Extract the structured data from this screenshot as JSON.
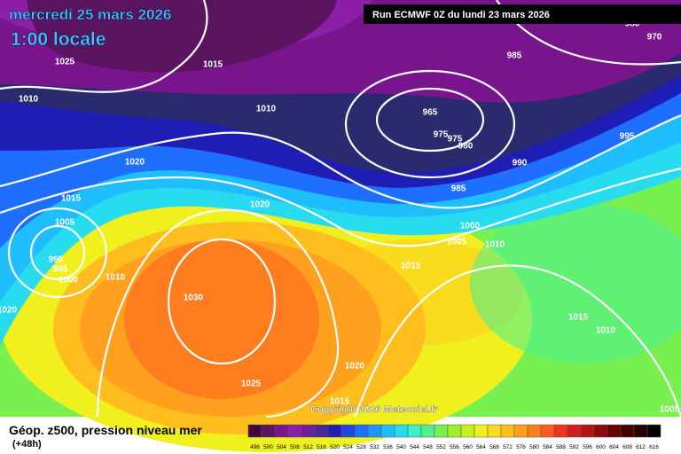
{
  "header": {
    "date": "mercredi 25 mars 2026",
    "time": "1:00 locale",
    "run": "Run ECMWF 0Z du lundi 23 mars 2026"
  },
  "map": {
    "isobar_labels": [
      1025,
      1015,
      1010,
      1010,
      965,
      975,
      975,
      980,
      985,
      995,
      990,
      985,
      1020,
      1020,
      1015,
      1005,
      990,
      995,
      1000,
      1010,
      1030,
      1000,
      1005,
      1010,
      1015,
      1015,
      1010,
      1020,
      1025,
      1015,
      1005,
      980,
      970,
      1020
    ],
    "copyright": "Copyright 2026 Meteociel.fr"
  },
  "legend": {
    "title": "Géop. z500, pression niveau mer",
    "lead": "(+48h)",
    "scale": [
      {
        "value": 496,
        "color": "#3c0a3c"
      },
      {
        "value": 500,
        "color": "#5a1460"
      },
      {
        "value": 504,
        "color": "#78148c"
      },
      {
        "value": 508,
        "color": "#8c1eaa"
      },
      {
        "value": 512,
        "color": "#6e1e96"
      },
      {
        "value": 516,
        "color": "#462896"
      },
      {
        "value": 520,
        "color": "#1e1eb4"
      },
      {
        "value": 524,
        "color": "#1e46dc"
      },
      {
        "value": 528,
        "color": "#1e6eff"
      },
      {
        "value": 532,
        "color": "#1e96ff"
      },
      {
        "value": 536,
        "color": "#1ebeff"
      },
      {
        "value": 540,
        "color": "#28dcf0"
      },
      {
        "value": 544,
        "color": "#3cf0c8"
      },
      {
        "value": 548,
        "color": "#50f08c"
      },
      {
        "value": 552,
        "color": "#78f050"
      },
      {
        "value": 556,
        "color": "#a0f028"
      },
      {
        "value": 560,
        "color": "#c8f01e"
      },
      {
        "value": 564,
        "color": "#f0f01e"
      },
      {
        "value": 568,
        "color": "#fadc1e"
      },
      {
        "value": 572,
        "color": "#ffbe1e"
      },
      {
        "value": 576,
        "color": "#ffa01e"
      },
      {
        "value": 580,
        "color": "#ff7d1e"
      },
      {
        "value": 584,
        "color": "#ff5a1e"
      },
      {
        "value": 588,
        "color": "#f0321e"
      },
      {
        "value": 592,
        "color": "#d21e1e"
      },
      {
        "value": 596,
        "color": "#b41414"
      },
      {
        "value": 600,
        "color": "#8c0a0a"
      },
      {
        "value": 604,
        "color": "#640000"
      },
      {
        "value": 608,
        "color": "#460000"
      },
      {
        "value": 612,
        "color": "#280000"
      },
      {
        "value": 616,
        "color": "#000000"
      }
    ]
  }
}
